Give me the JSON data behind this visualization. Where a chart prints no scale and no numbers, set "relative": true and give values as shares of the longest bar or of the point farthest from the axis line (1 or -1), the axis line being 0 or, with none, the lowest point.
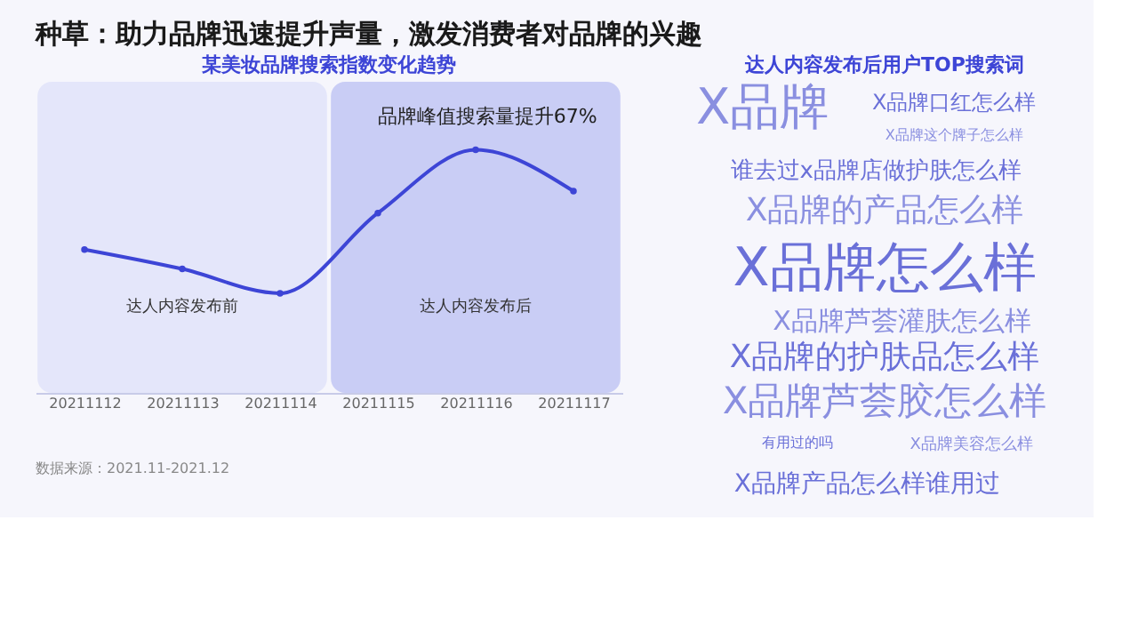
{
  "chart_data": [
    {
      "type": "line",
      "title": "种草：助力品牌迅速提升声量，激发消费者对品牌的兴趣",
      "subtitle": "某美妆品牌搜索指数变化趋势",
      "categories": [
        "20211112",
        "20211113",
        "20211114",
        "20211115",
        "20211116",
        "20211117"
      ],
      "relative": true,
      "series": [
        {
          "color": "#3d45d6",
          "values": [
            0.59,
            0.51,
            0.41,
            0.74,
            1,
            0.83
          ]
        }
      ],
      "marker": "circle",
      "bands": [
        {
          "axis": "x",
          "from": "20211112",
          "to": "20211114",
          "label": "达人内容发布前",
          "color": "#e4e6fa"
        },
        {
          "axis": "x",
          "from": "20211115",
          "to": "20211117",
          "label": "达人内容发布后",
          "color": "#c9cdf5"
        }
      ],
      "annotations": [
        "品牌峰值搜索量提升67%",
        "数据来源：2021.11-2021.12"
      ],
      "legend": false
    },
    {
      "type": "other",
      "title": "达人内容发布后用户TOP搜索词",
      "annotations": [
        "X品牌",
        "X品牌口红怎么样",
        "X品牌这个牌子怎么样",
        "谁去过x品牌店做护肤怎么样",
        "X品牌的产品怎么样",
        "X品牌怎么样",
        "X品牌芦荟灌肤怎么样",
        "X品牌的护肤品怎么样",
        "X品牌芦荟胶怎么样",
        "有用过的吗",
        "X品牌美容怎么样",
        "X品牌产品怎么样谁用过"
      ]
    }
  ]
}
